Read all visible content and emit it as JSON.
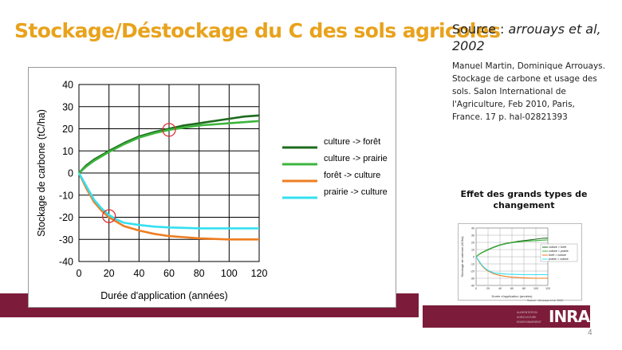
{
  "slide": {
    "title": "Stockage/Déstockage du C des sols agricoles",
    "source_label": "Source : ",
    "source_authors": "arrouays et al, 2002",
    "reference": "Manuel Martin, Dominique Arrouays. Stockage de carbone et usage des sols. Salon International de l'Agriculture, Feb 2010, Paris, France. 17 p. hal-02821393",
    "page_number": "4",
    "band_color": "#7c1c3a",
    "title_color": "#e8a21c"
  },
  "thumbnail": {
    "title": "Effet des grands types de changement",
    "logo": "INRA",
    "logo_lines": [
      "ALIMENTATION",
      "AGRICULTURE",
      "ENVIRONNEMENT"
    ],
    "caption": "Source : Arrouays et al. 2002",
    "legend": [
      "culture > forêt",
      "culture > prairie",
      "forêt > culture",
      "prairie > culture"
    ],
    "y_ticks": [
      "40",
      "30",
      "20",
      "10",
      "0",
      "-10",
      "-20",
      "-30",
      "-40"
    ],
    "x_ticks": [
      "0",
      "20",
      "40",
      "60",
      "80",
      "100",
      "120"
    ],
    "ylabel": "Stockage de carbone (tC/ha)",
    "xlabel": "Durée d'application (années)"
  },
  "chart_data": {
    "type": "line",
    "xlabel": "Durée d'application (années)",
    "ylabel": "Stockage de carbone (tC/ha)",
    "xlim": [
      0,
      120
    ],
    "ylim": [
      -40,
      40
    ],
    "x_ticks": [
      0,
      20,
      40,
      60,
      80,
      100,
      120
    ],
    "y_ticks": [
      -40,
      -30,
      -20,
      -10,
      0,
      10,
      20,
      30,
      40
    ],
    "grid": true,
    "legend_position": "right",
    "series": [
      {
        "name": "culture -> forêt",
        "color": "#1d6b1d",
        "x": [
          0,
          5,
          10,
          20,
          30,
          40,
          50,
          60,
          70,
          80,
          90,
          100,
          110,
          120
        ],
        "y": [
          0,
          3.5,
          6,
          10,
          13.5,
          16.5,
          18.5,
          20,
          21.5,
          22.5,
          23.5,
          24.5,
          25.5,
          26
        ]
      },
      {
        "name": "culture -> prairie",
        "color": "#3cb53c",
        "x": [
          0,
          5,
          10,
          20,
          30,
          40,
          50,
          60,
          70,
          80,
          90,
          100,
          110,
          120
        ],
        "y": [
          0,
          3,
          5.5,
          9.5,
          13,
          16,
          18,
          19.5,
          20.5,
          21.5,
          22,
          22.5,
          23,
          23.5
        ]
      },
      {
        "name": "forêt -> culture",
        "color": "#ee7d22",
        "x": [
          0,
          5,
          10,
          15,
          20,
          25,
          30,
          40,
          50,
          60,
          70,
          80,
          90,
          100,
          110,
          120
        ],
        "y": [
          0,
          -7,
          -13,
          -17,
          -20,
          -22,
          -24,
          -26,
          -27.5,
          -28.5,
          -29,
          -29.5,
          -29.8,
          -30,
          -30,
          -30
        ]
      },
      {
        "name": "prairie -> culture",
        "color": "#33e0f0",
        "x": [
          0,
          5,
          10,
          15,
          20,
          25,
          30,
          40,
          50,
          60,
          70,
          80,
          90,
          100,
          110,
          120
        ],
        "y": [
          0,
          -6,
          -12,
          -16,
          -19,
          -21,
          -22.5,
          -23.5,
          -24.2,
          -24.6,
          -24.8,
          -25,
          -25,
          -25,
          -25,
          -25
        ]
      }
    ],
    "annotations": [
      {
        "type": "circle",
        "x": 60,
        "y": 19.5,
        "color": "#e03030"
      },
      {
        "type": "circle",
        "x": 20,
        "y": -19.5,
        "color": "#e03030"
      }
    ]
  }
}
